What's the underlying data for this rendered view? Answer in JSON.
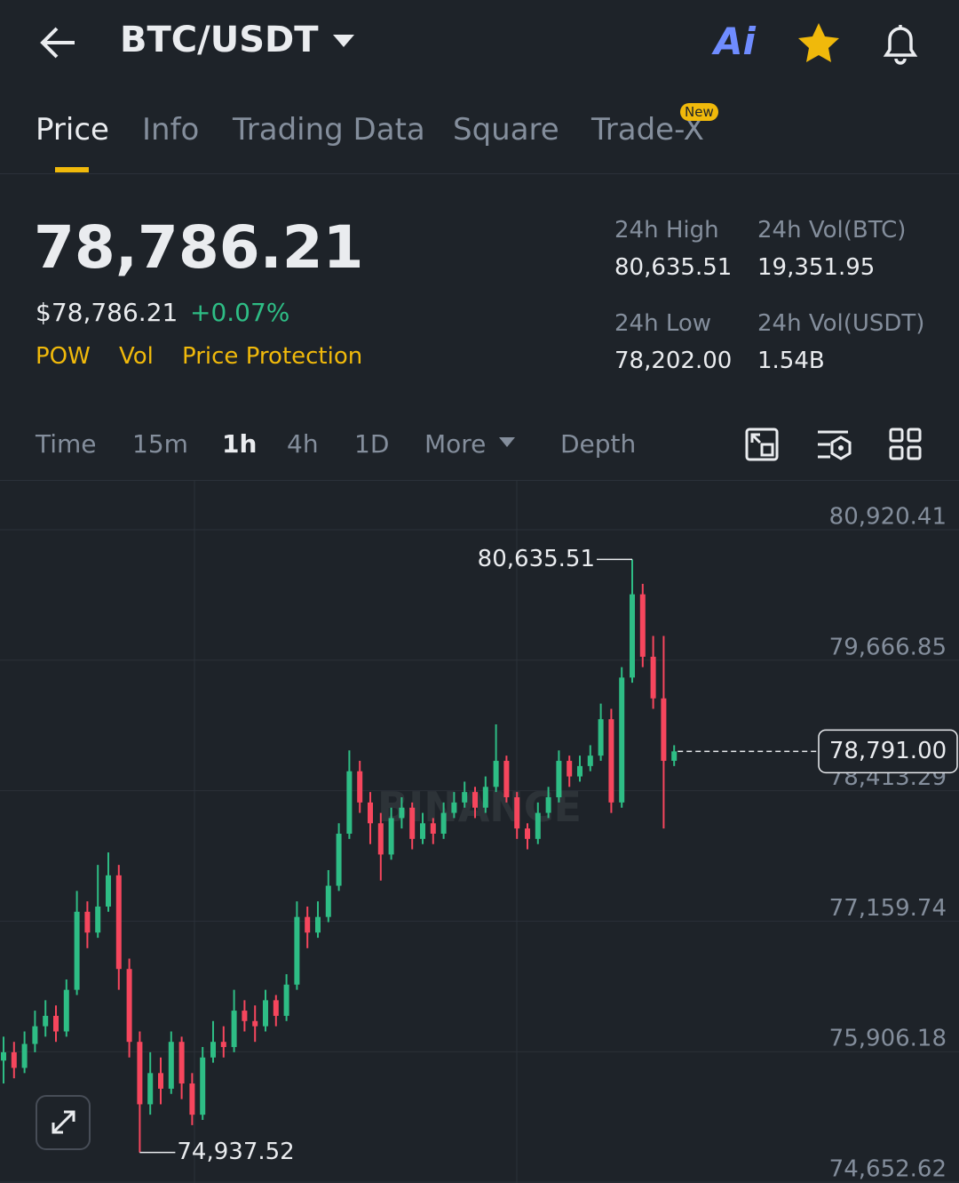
{
  "header": {
    "title": "BTC/USDT",
    "ai_label": "Ai"
  },
  "tabs": [
    "Price",
    "Info",
    "Trading Data",
    "Square",
    "Trade-X"
  ],
  "tab_badge": "New",
  "price": {
    "last": "78,786.21",
    "usd": "$78,786.21",
    "change": "+0.07%"
  },
  "tags": [
    "POW",
    "Vol",
    "Price Protection"
  ],
  "stats": [
    {
      "label": "24h High",
      "value": "80,635.51"
    },
    {
      "label": "24h Vol(BTC)",
      "value": "19,351.95"
    },
    {
      "label": "24h Low",
      "value": "78,202.00"
    },
    {
      "label": "24h Vol(USDT)",
      "value": "1.54B"
    }
  ],
  "intervals": [
    "Time",
    "15m",
    "1h",
    "4h",
    "1D",
    "More",
    "Depth"
  ],
  "chart_data": {
    "type": "candlestick",
    "watermark": "BINANCE",
    "up_color": "#2ebd85",
    "down_color": "#f6465d",
    "ylim": [
      74644,
      81390
    ],
    "yticks": [
      {
        "value": 80920.41,
        "label": "80,920.41"
      },
      {
        "value": 79666.85,
        "label": "79,666.85"
      },
      {
        "value": 78413.29,
        "label": "78,413.29"
      },
      {
        "value": 77159.74,
        "label": "77,159.74"
      },
      {
        "value": 75906.18,
        "label": "75,906.18"
      },
      {
        "value": 74652.62,
        "label": "74,652.62"
      }
    ],
    "grid": true,
    "candles": [
      [
        75820,
        76050,
        75600,
        75900
      ],
      [
        75900,
        76000,
        75650,
        75750
      ],
      [
        75750,
        76100,
        75700,
        75980
      ],
      [
        75980,
        76300,
        75900,
        76150
      ],
      [
        76150,
        76400,
        76050,
        76250
      ],
      [
        76250,
        76350,
        76000,
        76100
      ],
      [
        76100,
        76600,
        76050,
        76500
      ],
      [
        76500,
        77450,
        76450,
        77250
      ],
      [
        77250,
        77350,
        76900,
        77050
      ],
      [
        77050,
        77700,
        77000,
        77300
      ],
      [
        77300,
        77820,
        77250,
        77600
      ],
      [
        77600,
        77700,
        76500,
        76700
      ],
      [
        76700,
        76800,
        75850,
        76000
      ],
      [
        76000,
        76100,
        74937.52,
        75400
      ],
      [
        75400,
        75900,
        75300,
        75700
      ],
      [
        75700,
        75850,
        75400,
        75550
      ],
      [
        75550,
        76100,
        75500,
        76000
      ],
      [
        76000,
        76050,
        75450,
        75600
      ],
      [
        75600,
        75700,
        75200,
        75300
      ],
      [
        75300,
        75950,
        75250,
        75850
      ],
      [
        75850,
        76200,
        75800,
        76000
      ],
      [
        76000,
        76150,
        75850,
        75950
      ],
      [
        75950,
        76500,
        75900,
        76300
      ],
      [
        76300,
        76400,
        76100,
        76200
      ],
      [
        76200,
        76350,
        76000,
        76150
      ],
      [
        76150,
        76500,
        76100,
        76400
      ],
      [
        76400,
        76450,
        76150,
        76250
      ],
      [
        76250,
        76650,
        76200,
        76550
      ],
      [
        76550,
        77350,
        76500,
        77200
      ],
      [
        77200,
        77300,
        76900,
        77050
      ],
      [
        77050,
        77350,
        77000,
        77200
      ],
      [
        77200,
        77650,
        77150,
        77500
      ],
      [
        77500,
        78100,
        77450,
        78000
      ],
      [
        78000,
        78800,
        77950,
        78600
      ],
      [
        78600,
        78700,
        78200,
        78300
      ],
      [
        78300,
        78400,
        77900,
        78100
      ],
      [
        78100,
        78200,
        77550,
        77800
      ],
      [
        77800,
        78250,
        77750,
        78150
      ],
      [
        78150,
        78350,
        78050,
        78250
      ],
      [
        78250,
        78300,
        77850,
        77950
      ],
      [
        77950,
        78200,
        77900,
        78100
      ],
      [
        78100,
        78150,
        77900,
        78000
      ],
      [
        78000,
        78300,
        77950,
        78200
      ],
      [
        78200,
        78400,
        78150,
        78300
      ],
      [
        78300,
        78500,
        78250,
        78400
      ],
      [
        78400,
        78450,
        78150,
        78250
      ],
      [
        78250,
        78550,
        78200,
        78450
      ],
      [
        78450,
        79050,
        78400,
        78700
      ],
      [
        78700,
        78750,
        78300,
        78350
      ],
      [
        78350,
        78400,
        77950,
        78050
      ],
      [
        78050,
        78100,
        77850,
        77950
      ],
      [
        77950,
        78300,
        77900,
        78200
      ],
      [
        78200,
        78450,
        78150,
        78350
      ],
      [
        78350,
        78800,
        78300,
        78700
      ],
      [
        78700,
        78750,
        78450,
        78550
      ],
      [
        78550,
        78750,
        78500,
        78650
      ],
      [
        78650,
        78850,
        78600,
        78750
      ],
      [
        78750,
        79250,
        78700,
        79100
      ],
      [
        79100,
        79200,
        78200,
        78300
      ],
      [
        78300,
        79600,
        78250,
        79500
      ],
      [
        79500,
        80635.51,
        79450,
        80300
      ],
      [
        80300,
        80400,
        79600,
        79700
      ],
      [
        79700,
        79900,
        79200,
        79300
      ],
      [
        79300,
        79900,
        78050,
        78700
      ],
      [
        78700,
        78850,
        78650,
        78791
      ]
    ],
    "high_marker": {
      "value": 80635.51,
      "label": "80,635.51"
    },
    "low_marker": {
      "value": 74937.52,
      "label": "74,937.52"
    },
    "last_price": {
      "value": 78791,
      "label": "78,791.00"
    }
  }
}
